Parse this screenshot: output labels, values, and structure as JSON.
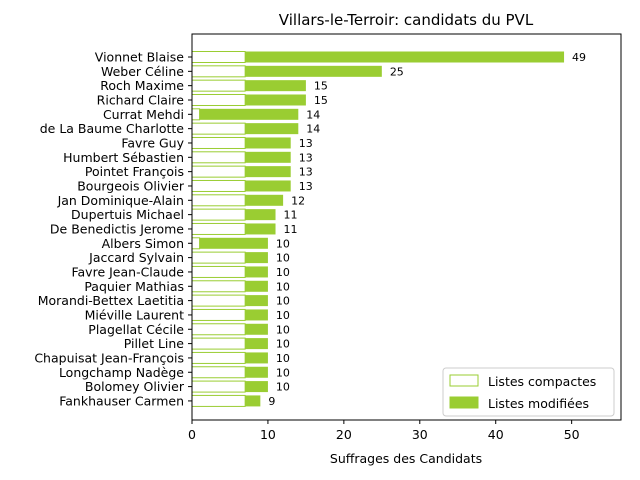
{
  "chart_data": {
    "type": "bar",
    "orientation": "horizontal",
    "stacked": true,
    "title": "Villars-le-Terroir: candidats du PVL",
    "xlabel": "Suffrages des Candidats",
    "ylabel": "",
    "xlim": [
      0,
      56.5
    ],
    "xticks": [
      0,
      10,
      20,
      30,
      40,
      50
    ],
    "grid": false,
    "legend_position": "bottom-right",
    "colors": {
      "compact": "#ffffff",
      "compact_edge": "#9acd32",
      "modified": "#9acd32"
    },
    "categories": [
      "Vionnet Blaise",
      "Weber Céline",
      "Roch Maxime",
      "Richard Claire",
      "Currat Mehdi",
      "de La Baume Charlotte",
      "Favre Guy",
      "Humbert Sébastien",
      "Pointet François",
      "Bourgeois Olivier",
      "Jan Dominique-Alain",
      "Dupertuis Michael",
      "De Benedictis Jerome",
      "Albers Simon",
      "Jaccard Sylvain",
      "Favre Jean-Claude",
      "Paquier Mathias",
      "Morandi-Bettex Laetitia",
      "Miéville Laurent",
      "Plagellat Cécile",
      "Pillet Line",
      "Chapuisat Jean-François",
      "Longchamp Nadège",
      "Bolomey Olivier",
      "Fankhauser Carmen"
    ],
    "series": [
      {
        "name": "Listes compactes",
        "values": [
          7,
          7,
          7,
          7,
          1,
          7,
          7,
          7,
          7,
          7,
          7,
          7,
          7,
          1,
          7,
          7,
          7,
          7,
          7,
          7,
          7,
          7,
          7,
          7,
          7
        ]
      },
      {
        "name": "Listes modifiées",
        "values": [
          42,
          18,
          8,
          8,
          13,
          7,
          6,
          6,
          6,
          6,
          5,
          4,
          4,
          9,
          3,
          3,
          3,
          3,
          3,
          3,
          3,
          3,
          3,
          3,
          2
        ]
      }
    ],
    "totals": [
      49,
      25,
      15,
      15,
      14,
      14,
      13,
      13,
      13,
      13,
      12,
      11,
      11,
      10,
      10,
      10,
      10,
      10,
      10,
      10,
      10,
      10,
      10,
      10,
      9
    ]
  }
}
